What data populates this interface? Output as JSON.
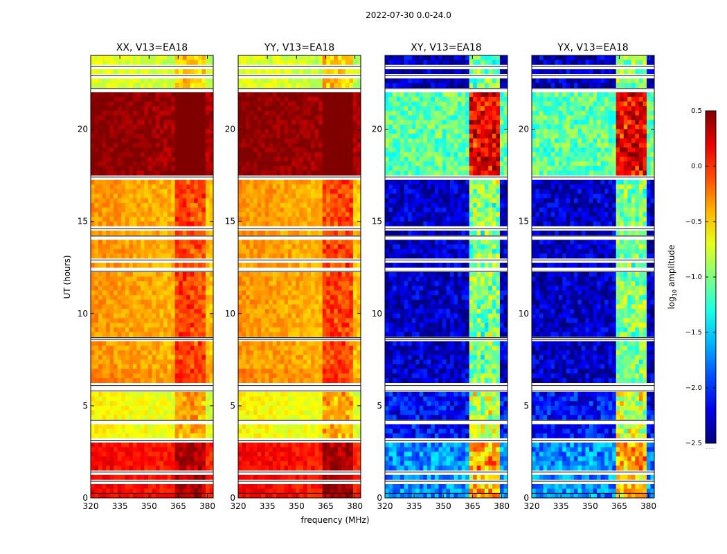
{
  "figure": {
    "suptitle": "2022-07-30 0.0-24.0"
  },
  "chart_data": {
    "type": "heatmap",
    "panels": [
      {
        "title": "XX, V13=EA18",
        "product": "auto"
      },
      {
        "title": "YY, V13=EA18",
        "product": "auto"
      },
      {
        "title": "XY, V13=EA18",
        "product": "cross"
      },
      {
        "title": "YX, V13=EA18",
        "product": "cross"
      }
    ],
    "xlabel": "frequency (MHz)",
    "ylabel": "UT (hours)",
    "xlim": [
      320,
      383
    ],
    "ylim": [
      0,
      24
    ],
    "xticks": [
      "320",
      "335",
      "350",
      "365",
      "380"
    ],
    "yticks": [
      "0",
      "5",
      "10",
      "15",
      "20"
    ],
    "colorbar": {
      "label": "log$_{10}$ amplitude",
      "label_main": "log",
      "label_sub": "10",
      "label_rest": " amplitude",
      "range": [
        -2.5,
        0.5
      ],
      "ticks": [
        "0.5",
        "0.0",
        "−0.5",
        "−1.0",
        "−1.5",
        "−2.0",
        "−2.5"
      ],
      "colormap": "jet",
      "footer": "......"
    },
    "rfi_band_mhz": [
      363,
      380
    ],
    "blank_rows_ut": [
      0.25,
      0.9,
      1.4,
      3.1,
      4.2,
      5.8,
      6.1,
      8.6,
      8.7,
      12.3,
      12.9,
      14.2,
      14.6,
      17.4,
      22.2,
      22.9,
      23.4
    ],
    "amplitude_regimes_ut": [
      {
        "ut_range": [
          0,
          3.1
        ],
        "auto_level": 0.15,
        "cross_level": -1.7
      },
      {
        "ut_range": [
          3.1,
          6.2
        ],
        "auto_level": -0.6,
        "cross_level": -2.1
      },
      {
        "ut_range": [
          6.2,
          7.1
        ],
        "auto_level": -0.25,
        "cross_level": -2.3
      },
      {
        "ut_range": [
          7.1,
          17.4
        ],
        "auto_level": -0.3,
        "cross_level": -2.3
      },
      {
        "ut_range": [
          17.5,
          22.1
        ],
        "auto_level": 0.5,
        "cross_level": -1.1
      },
      {
        "ut_range": [
          22.3,
          24
        ],
        "auto_level": -0.7,
        "cross_level": -2.3
      }
    ]
  }
}
